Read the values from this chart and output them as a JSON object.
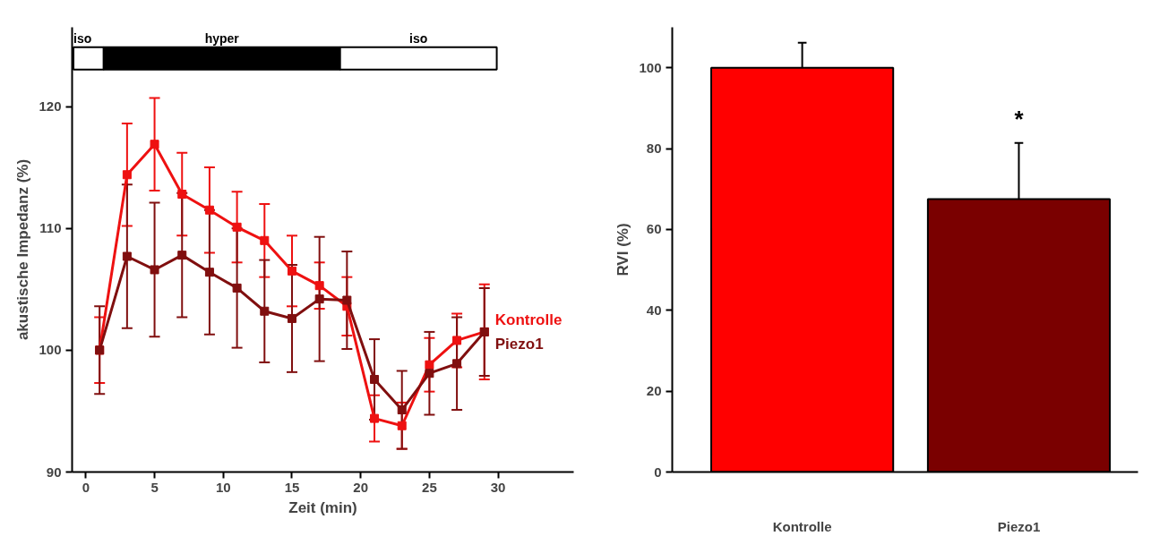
{
  "chart_data": [
    {
      "type": "line",
      "xlabel": "Zeit (min)",
      "ylabel": "akustische Impedanz (%)",
      "x": [
        1,
        3,
        5,
        7,
        9,
        11,
        13,
        15,
        17,
        19,
        21,
        23,
        25,
        27,
        29
      ],
      "series": [
        {
          "name": "Kontrolle",
          "color": "#ee1111",
          "values": [
            100,
            114.4,
            116.9,
            112.8,
            111.5,
            110.1,
            109.0,
            106.5,
            105.3,
            103.6,
            94.4,
            93.8,
            98.8,
            100.8,
            101.5
          ],
          "errors": [
            2.7,
            4.2,
            3.8,
            3.4,
            3.5,
            2.9,
            3.0,
            2.9,
            1.9,
            2.4,
            1.9,
            1.9,
            2.2,
            2.2,
            3.9
          ]
        },
        {
          "name": "Piezo1",
          "color": "#800f0f",
          "values": [
            100,
            107.7,
            106.6,
            107.8,
            106.4,
            105.1,
            103.2,
            102.6,
            104.2,
            104.1,
            97.6,
            95.1,
            98.1,
            98.9,
            101.5
          ],
          "errors": [
            3.6,
            5.9,
            5.5,
            5.1,
            5.1,
            4.9,
            4.2,
            4.4,
            5.1,
            4.0,
            3.3,
            3.2,
            3.4,
            3.8,
            3.6
          ]
        }
      ],
      "xlim": [
        -1,
        35.5
      ],
      "ylim": [
        90,
        126.5
      ],
      "xticks": [
        0,
        5,
        10,
        15,
        20,
        25,
        30
      ],
      "yticks": [
        90,
        100,
        110,
        120
      ],
      "bands": [
        {
          "axis": "x",
          "from": -0.9,
          "to": 1.3,
          "label": "iso",
          "color": "#ffffff"
        },
        {
          "axis": "x",
          "from": 1.3,
          "to": 18.5,
          "label": "hyper",
          "color": "#000000"
        },
        {
          "axis": "x",
          "from": 18.5,
          "to": 29.9,
          "label": "iso",
          "color": "#ffffff"
        }
      ],
      "marker": "square",
      "line_style": "solid",
      "grid": false
    },
    {
      "type": "bar",
      "ylabel": "RVI (%)",
      "categories": [
        "Kontrolle",
        "Piezo1"
      ],
      "colors": [
        "#ff0000",
        "#7a0000"
      ],
      "values": [
        100,
        67.5
      ],
      "errors": [
        [
          100,
          106.2
        ],
        [
          67.5,
          81.4
        ]
      ],
      "ylim": [
        0,
        110
      ],
      "yticks": [
        0,
        20,
        40,
        60,
        80,
        100
      ],
      "annotations": [
        "*"
      ],
      "grid": false
    }
  ]
}
